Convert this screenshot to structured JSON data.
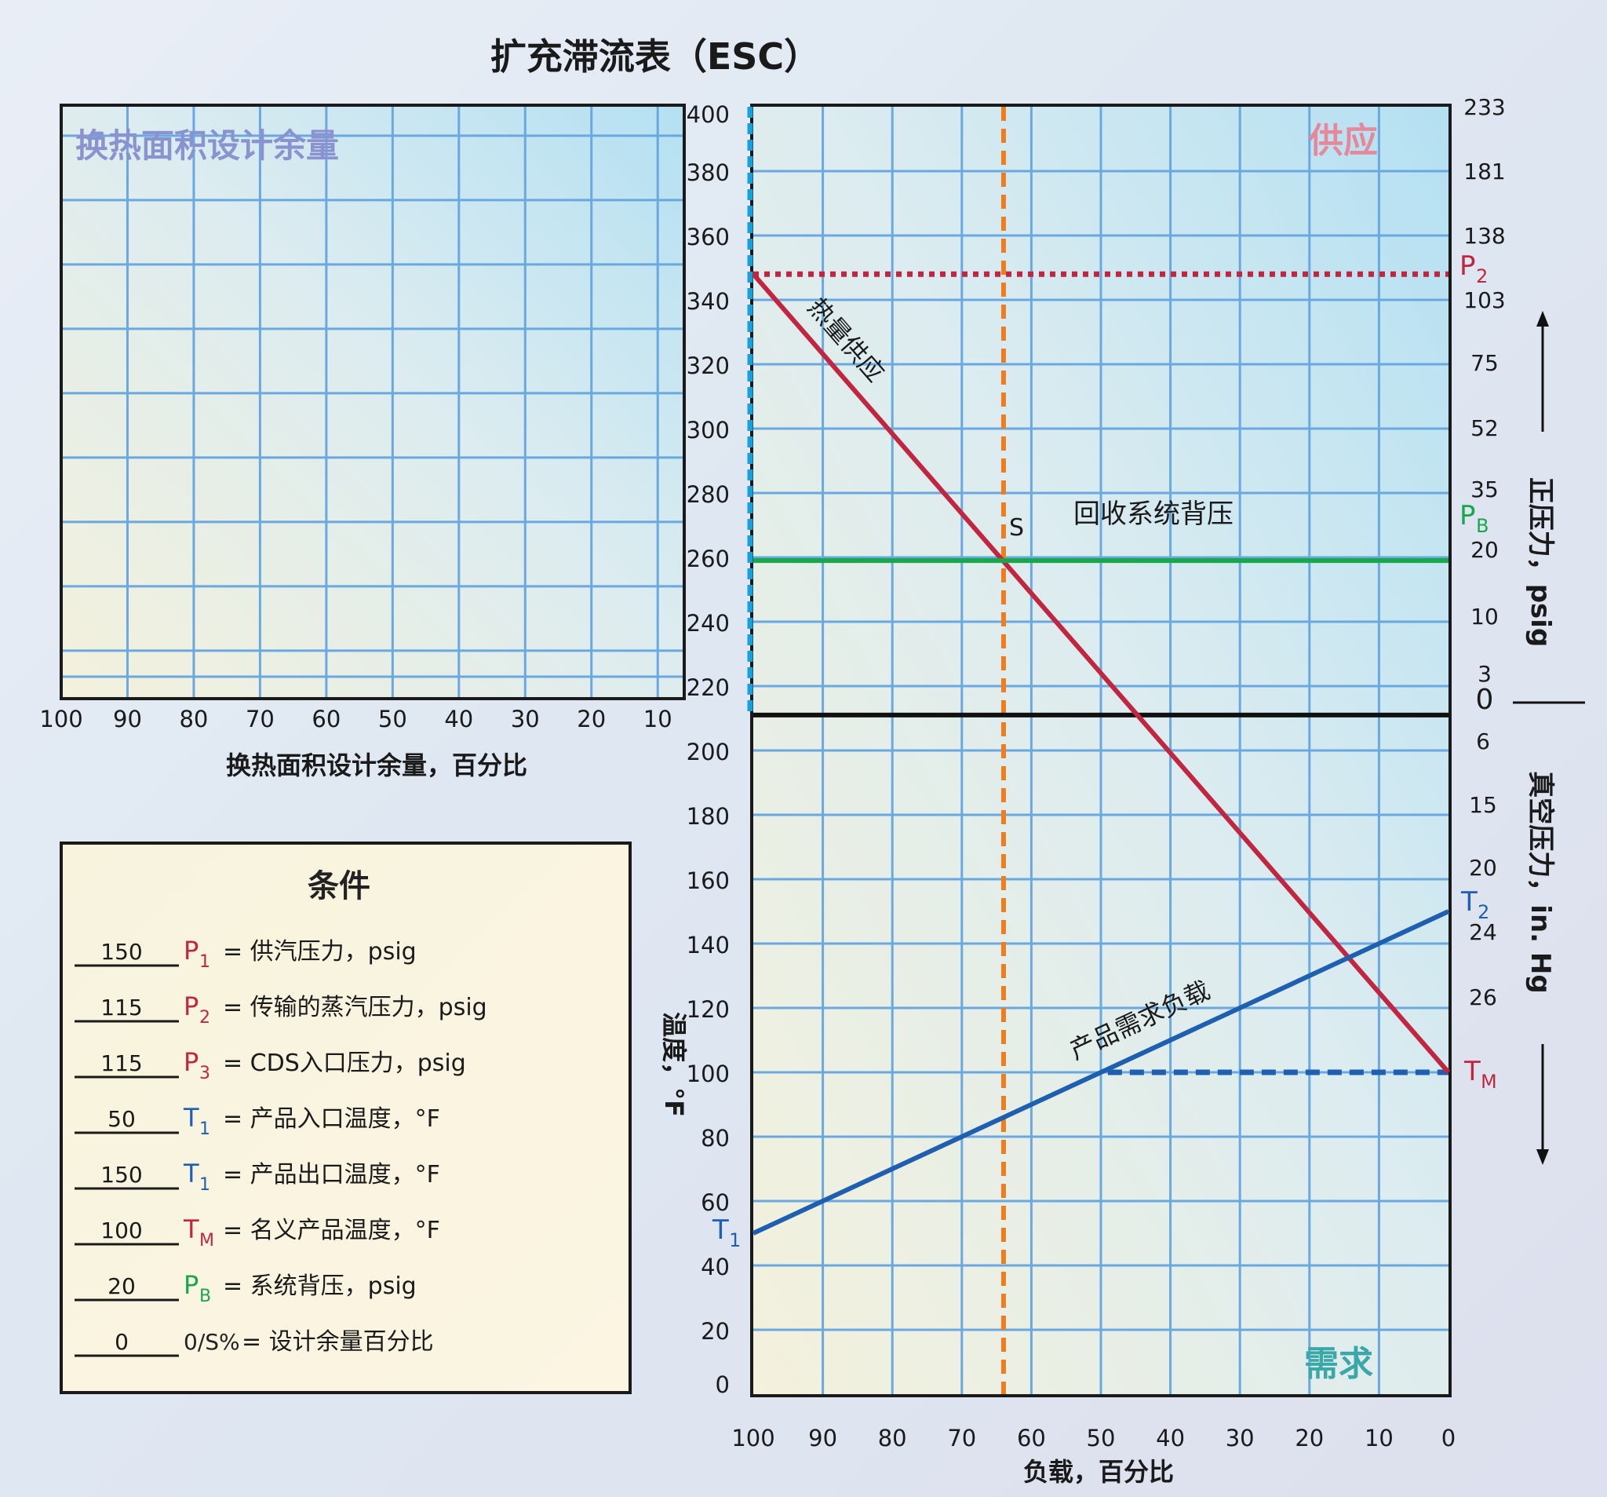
{
  "chart_data": {
    "type": "line",
    "title": "扩充滞流表（ESC）",
    "xlabel": "负载，百分比",
    "x_ticks": [
      "100",
      "90",
      "80",
      "70",
      "60",
      "50",
      "40",
      "30",
      "20",
      "10",
      "0"
    ],
    "xlim": [
      100,
      0
    ],
    "y_label_left": "温度，°F",
    "y_ticks_left": [
      "0",
      "20",
      "40",
      "60",
      "80",
      "100",
      "120",
      "140",
      "160",
      "180",
      "200",
      "220",
      "240",
      "260",
      "280",
      "300",
      "320",
      "340",
      "360",
      "380",
      "400"
    ],
    "ylim": [
      0,
      400
    ],
    "y_label_right_upper": "正压力，psig",
    "y_ticks_right_upper": [
      "0",
      "3",
      "10",
      "20",
      "35",
      "52",
      "75",
      "103",
      "138",
      "181",
      "233"
    ],
    "y_label_right_lower": "真空压力，in. Hg",
    "y_ticks_right_lower": [
      "6",
      "15",
      "20",
      "24",
      "26"
    ],
    "zone_supply_label": "供应",
    "zone_demand_label": "需求",
    "series": [
      {
        "name": "热量供应",
        "color": "#c0263f",
        "x": [
          100,
          0
        ],
        "y": [
          348,
          100
        ]
      },
      {
        "name": "回收系统背压",
        "color": "#16a84a",
        "x": [
          100,
          0
        ],
        "y": [
          259,
          259
        ]
      },
      {
        "name": "产品需求负载",
        "color": "#1f5fb0",
        "x": [
          100,
          0
        ],
        "y": [
          50,
          150
        ]
      }
    ],
    "reference_lines": [
      {
        "name": "P2",
        "orientation": "horizontal",
        "value": 348,
        "style": "dotted",
        "color": "#c0263f"
      },
      {
        "name": "TM",
        "orientation": "horizontal",
        "value": 100,
        "from_x": 49,
        "style": "dashed",
        "color": "#1f5fb0"
      },
      {
        "name": "S",
        "orientation": "vertical",
        "value": 64,
        "style": "dashed",
        "color": "#ee7d20"
      },
      {
        "name": "0",
        "orientation": "horizontal",
        "value": 211,
        "style": "solid",
        "color": "#111111"
      }
    ],
    "point_labels": {
      "P2": "P",
      "P2_sub": "2",
      "PB": "P",
      "PB_sub": "B",
      "T2": "T",
      "T2_sub": "2",
      "TM": "T",
      "TM_sub": "M",
      "T1": "T",
      "T1_sub": "1",
      "S": "S"
    },
    "colors": {
      "red": "#c0263f",
      "green": "#16a84a",
      "blue": "#1f5fb0",
      "orange": "#ee7d20",
      "grid": "#6aa8e0",
      "cyan": "#1aa0d8"
    },
    "grid": true,
    "area_chart": {
      "title": "换热面积设计余量",
      "xlabel": "换热面积设计余量，百分比",
      "x_ticks": [
        "100",
        "90",
        "80",
        "70",
        "60",
        "50",
        "40",
        "30",
        "20",
        "10"
      ]
    }
  },
  "conditions": {
    "title": "条件",
    "rows": [
      {
        "value": "150",
        "sym": "P",
        "sub": "1",
        "sym_color": "#c0263f",
        "desc": "=  供汽压力，psig"
      },
      {
        "value": "115",
        "sym": "P",
        "sub": "2",
        "sym_color": "#c0263f",
        "desc": "=  传输的蒸汽压力，psig"
      },
      {
        "value": "115",
        "sym": "P",
        "sub": "3",
        "sym_color": "#c0263f",
        "desc": "=  CDS入口压力，psig"
      },
      {
        "value": "50",
        "sym": "T",
        "sub": "1",
        "sym_color": "#1f5fb0",
        "desc": "=  产品入口温度，°F"
      },
      {
        "value": "150",
        "sym": "T",
        "sub": "1",
        "sym_color": "#1f5fb0",
        "desc": "=  产品出口温度，°F"
      },
      {
        "value": "100",
        "sym": "T",
        "sub": "M",
        "sym_color": "#c0263f",
        "desc": "=  名义产品温度，°F"
      },
      {
        "value": "20",
        "sym": "P",
        "sub": "B",
        "sym_color": "#16a84a",
        "desc": "=  系统背压，psig"
      },
      {
        "value": "0",
        "sym": "0/S%",
        "sub": "",
        "sym_color": "#222222",
        "desc": "=  设计余量百分比"
      }
    ]
  }
}
